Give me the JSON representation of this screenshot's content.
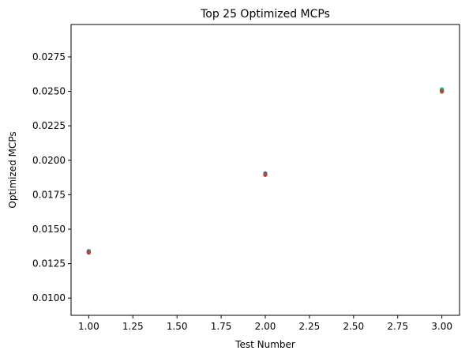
{
  "chart_data": {
    "type": "scatter",
    "title": "Top 25 Optimized MCPs",
    "xlabel": "Test Number",
    "ylabel": "Optimized MCPs",
    "xlim": [
      0.9,
      3.1
    ],
    "ylim": [
      0.00875,
      0.02985
    ],
    "grid": false,
    "legend": "none",
    "x_ticks": [
      1.0,
      1.25,
      1.5,
      1.75,
      2.0,
      2.25,
      2.5,
      2.75,
      3.0
    ],
    "x_tick_labels": [
      "1.00",
      "1.25",
      "1.50",
      "1.75",
      "2.00",
      "2.25",
      "2.50",
      "2.75",
      "3.00"
    ],
    "y_ticks": [
      0.01,
      0.0125,
      0.015,
      0.0175,
      0.02,
      0.0225,
      0.025,
      0.0275
    ],
    "y_tick_labels": [
      "0.0100",
      "0.0125",
      "0.0150",
      "0.0175",
      "0.0200",
      "0.0225",
      "0.0250",
      "0.0275"
    ],
    "points": [
      {
        "x": 1,
        "y": 0.01341,
        "color": "#1f77b4"
      },
      {
        "x": 1,
        "y": 0.01338,
        "color": "#2ca02c"
      },
      {
        "x": 1,
        "y": 0.01335,
        "color": "#9467bd"
      },
      {
        "x": 1,
        "y": 0.01332,
        "color": "#e377c2"
      },
      {
        "x": 1,
        "y": 0.0133,
        "color": "#d62728"
      },
      {
        "x": 1,
        "y": 0.01336,
        "color": "#8c564b"
      },
      {
        "x": 2,
        "y": 0.01905,
        "color": "#1f77b4"
      },
      {
        "x": 2,
        "y": 0.019,
        "color": "#2ca02c"
      },
      {
        "x": 2,
        "y": 0.01897,
        "color": "#9467bd"
      },
      {
        "x": 2,
        "y": 0.01893,
        "color": "#e377c2"
      },
      {
        "x": 2,
        "y": 0.01895,
        "color": "#d62728"
      },
      {
        "x": 2,
        "y": 0.019,
        "color": "#8c564b"
      },
      {
        "x": 3,
        "y": 0.02515,
        "color": "#17becf"
      },
      {
        "x": 3,
        "y": 0.02508,
        "color": "#2ca02c"
      },
      {
        "x": 3,
        "y": 0.02503,
        "color": "#9467bd"
      },
      {
        "x": 3,
        "y": 0.025,
        "color": "#d62728"
      },
      {
        "x": 3,
        "y": 0.02497,
        "color": "#ff7f0e"
      },
      {
        "x": 3,
        "y": 0.02502,
        "color": "#8c564b"
      }
    ]
  }
}
